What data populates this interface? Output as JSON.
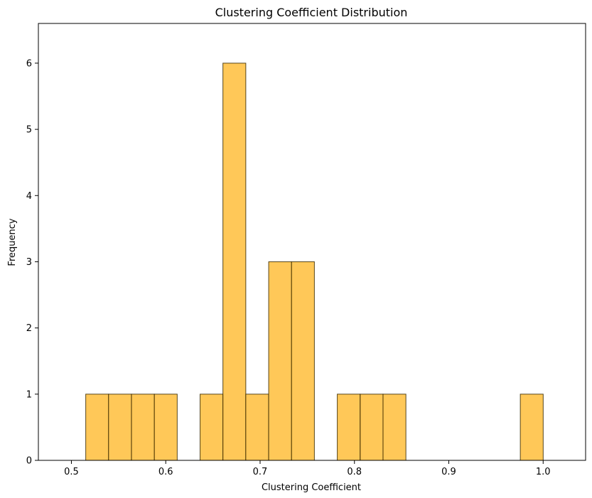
{
  "chart_data": {
    "type": "bar",
    "title": "Clustering Coefficient Distribution",
    "xlabel": "Clustering Coefficient",
    "ylabel": "Frequency",
    "xlim": [
      0.465,
      1.045
    ],
    "ylim": [
      0,
      6.6
    ],
    "bar_color": "#ffb520",
    "edge_color": "#3a2a00",
    "bin_width": 0.02424,
    "bins": [
      {
        "x0": 0.5152,
        "value": 1
      },
      {
        "x0": 0.5394,
        "value": 1
      },
      {
        "x0": 0.5637,
        "value": 1
      },
      {
        "x0": 0.5879,
        "value": 1
      },
      {
        "x0": 0.6121,
        "value": 0
      },
      {
        "x0": 0.6364,
        "value": 1
      },
      {
        "x0": 0.6606,
        "value": 6
      },
      {
        "x0": 0.6848,
        "value": 1
      },
      {
        "x0": 0.7091,
        "value": 3
      },
      {
        "x0": 0.7333,
        "value": 3
      },
      {
        "x0": 0.7576,
        "value": 0
      },
      {
        "x0": 0.7818,
        "value": 1
      },
      {
        "x0": 0.8061,
        "value": 1
      },
      {
        "x0": 0.8303,
        "value": 1
      },
      {
        "x0": 0.8545,
        "value": 0
      },
      {
        "x0": 0.8788,
        "value": 0
      },
      {
        "x0": 0.903,
        "value": 0
      },
      {
        "x0": 0.9273,
        "value": 0
      },
      {
        "x0": 0.9515,
        "value": 0
      },
      {
        "x0": 0.9758,
        "value": 1
      }
    ],
    "x_ticks": [
      0.5,
      0.6,
      0.7,
      0.8,
      0.9,
      1.0
    ],
    "x_tick_labels": [
      "0.5",
      "0.6",
      "0.7",
      "0.8",
      "0.9",
      "1.0"
    ],
    "y_ticks": [
      0,
      1,
      2,
      3,
      4,
      5,
      6
    ],
    "y_tick_labels": [
      "0",
      "1",
      "2",
      "3",
      "4",
      "5",
      "6"
    ],
    "grid": false,
    "legend": "none"
  }
}
